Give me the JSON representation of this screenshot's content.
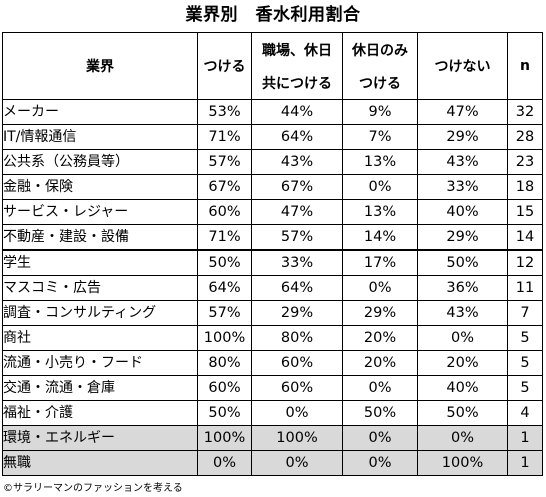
{
  "title": "業界別　香水利用割合",
  "credit": "©サラリーマンのファッションを考える",
  "chart_data": {
    "type": "table",
    "title": "業界別　香水利用割合",
    "columns": [
      "業界",
      "つける",
      "職場、休日 共につける",
      "休日のみ つける",
      "つけない",
      "n"
    ],
    "header": {
      "industry": "業界",
      "wear": "つける",
      "both_l1": "職場、休日",
      "both_l2": "共につける",
      "holiday_l1": "休日のみ",
      "holiday_l2": "つける",
      "none": "つけない",
      "n": "n"
    },
    "rows": [
      {
        "name": "メーカー",
        "wear": "53%",
        "both": "44%",
        "holiday": "9%",
        "none": "47%",
        "n": "32"
      },
      {
        "name": "IT/情報通信",
        "wear": "71%",
        "both": "64%",
        "holiday": "7%",
        "none": "29%",
        "n": "28"
      },
      {
        "name": "公共系（公務員等）",
        "wear": "57%",
        "both": "43%",
        "holiday": "13%",
        "none": "43%",
        "n": "23"
      },
      {
        "name": "金融・保険",
        "wear": "67%",
        "both": "67%",
        "holiday": "0%",
        "none": "33%",
        "n": "18"
      },
      {
        "name": "サービス・レジャー",
        "wear": "60%",
        "both": "47%",
        "holiday": "13%",
        "none": "40%",
        "n": "15"
      },
      {
        "name": "不動産・建設・設備",
        "wear": "71%",
        "both": "57%",
        "holiday": "14%",
        "none": "29%",
        "n": "14"
      },
      {
        "name": "学生",
        "wear": "50%",
        "both": "33%",
        "holiday": "17%",
        "none": "50%",
        "n": "12"
      },
      {
        "name": "マスコミ・広告",
        "wear": "64%",
        "both": "64%",
        "holiday": "0%",
        "none": "36%",
        "n": "11"
      },
      {
        "name": "調査・コンサルティング",
        "wear": "57%",
        "both": "29%",
        "holiday": "29%",
        "none": "43%",
        "n": "7"
      },
      {
        "name": "商社",
        "wear": "100%",
        "both": "80%",
        "holiday": "20%",
        "none": "0%",
        "n": "5"
      },
      {
        "name": "流通・小売り・フード",
        "wear": "80%",
        "both": "60%",
        "holiday": "20%",
        "none": "20%",
        "n": "5"
      },
      {
        "name": "交通・流通・倉庫",
        "wear": "60%",
        "both": "60%",
        "holiday": "0%",
        "none": "40%",
        "n": "5"
      },
      {
        "name": "福祉・介護",
        "wear": "50%",
        "both": "0%",
        "holiday": "50%",
        "none": "50%",
        "n": "4"
      },
      {
        "name": "環境・エネルギー",
        "wear": "100%",
        "both": "100%",
        "holiday": "0%",
        "none": "0%",
        "n": "1"
      },
      {
        "name": "無職",
        "wear": "0%",
        "both": "0%",
        "holiday": "0%",
        "none": "100%",
        "n": "1"
      }
    ],
    "thick_border_before_rows": [
      6
    ],
    "shaded_rows": [
      13,
      14
    ],
    "shade_color": "#d9d9d9"
  }
}
